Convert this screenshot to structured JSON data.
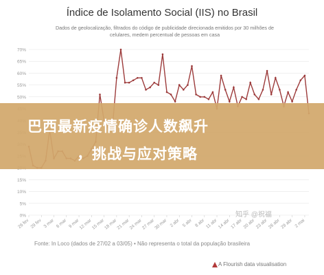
{
  "chart_data": {
    "type": "line",
    "title": "Índice de Isolamento Social (IIS) no Brasil",
    "subtitle_lines": [
      "Dados de geolocalização, filtrados do código de publicidade direcionada emitidos por 30 milhões de",
      "celulares, medem percentual de pessoas em casa"
    ],
    "y_ticks": [
      "0%",
      "5%",
      "10%",
      "15%",
      "20%",
      "25%",
      "30%",
      "35%",
      "40%",
      "45%",
      "50%",
      "55%",
      "60%",
      "65%",
      "70%"
    ],
    "ylim": [
      0,
      70
    ],
    "x_labels": [
      "26 fev",
      "29 fev",
      "3 mar",
      "6 mar",
      "9 mar",
      "12 mar",
      "15 mar",
      "18 mar",
      "21 mar",
      "24 mar",
      "27 mar",
      "30 mar",
      "2 abr",
      "5 abr",
      "8 abr",
      "11 abr",
      "14 abr",
      "17 abr",
      "20 abr",
      "23 abr",
      "26 abr",
      "29 abr",
      "2 mai"
    ],
    "x_start": "2020-02-26",
    "x_end": "2020-05-03",
    "values": [
      29,
      21,
      20,
      20,
      23,
      36,
      24,
      27,
      27,
      24,
      24,
      23,
      25,
      24,
      25,
      28,
      31,
      51,
      40,
      37,
      37,
      58,
      70,
      56,
      56,
      57,
      58,
      58,
      53,
      54,
      56,
      55,
      68,
      52,
      51,
      48,
      55,
      53,
      55,
      63,
      51,
      50,
      50,
      49,
      52,
      45,
      59,
      53,
      48,
      54,
      46,
      50,
      49,
      56,
      51,
      49,
      53,
      61,
      51,
      58,
      53,
      46,
      52,
      48,
      53,
      57,
      59,
      43
    ],
    "grid": true,
    "line_color": "#9c3a3a"
  },
  "banner": {
    "line1": "巴西最新疫情确诊人数飙升",
    "line2": "，挑战与应对策略"
  },
  "source_note": "Fonte: In Loco (dados de 27/02 a 03/05) • Não representa o total da população brasileira",
  "credit": "A Flourish data visualisation",
  "watermark": "知乎 @祝福"
}
